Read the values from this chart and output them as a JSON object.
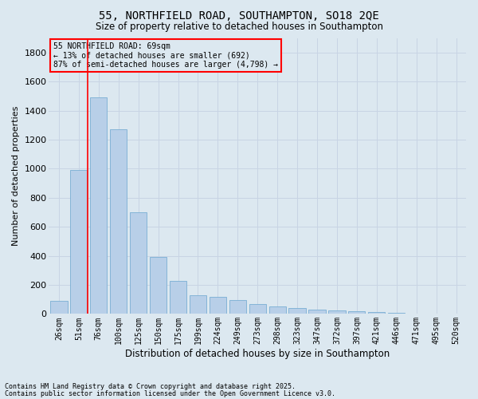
{
  "title1": "55, NORTHFIELD ROAD, SOUTHAMPTON, SO18 2QE",
  "title2": "Size of property relative to detached houses in Southampton",
  "xlabel": "Distribution of detached houses by size in Southampton",
  "ylabel": "Number of detached properties",
  "categories": [
    "26sqm",
    "51sqm",
    "76sqm",
    "100sqm",
    "125sqm",
    "150sqm",
    "175sqm",
    "199sqm",
    "224sqm",
    "249sqm",
    "273sqm",
    "298sqm",
    "323sqm",
    "347sqm",
    "372sqm",
    "397sqm",
    "421sqm",
    "446sqm",
    "471sqm",
    "495sqm",
    "520sqm"
  ],
  "values": [
    90,
    990,
    1490,
    1270,
    700,
    390,
    225,
    130,
    115,
    95,
    70,
    50,
    38,
    28,
    22,
    18,
    12,
    7,
    3,
    1,
    1
  ],
  "bar_color": "#b8cfe8",
  "bar_edge_color": "#7aaed4",
  "vline_color": "red",
  "vline_x": 1.45,
  "annotation_text": "55 NORTHFIELD ROAD: 69sqm\n← 13% of detached houses are smaller (692)\n87% of semi-detached houses are larger (4,798) →",
  "annotation_box_color": "red",
  "ylim": [
    0,
    1900
  ],
  "yticks": [
    0,
    200,
    400,
    600,
    800,
    1000,
    1200,
    1400,
    1600,
    1800
  ],
  "grid_color": "#c8d4e4",
  "bg_color": "#dce8f0",
  "footnote1": "Contains HM Land Registry data © Crown copyright and database right 2025.",
  "footnote2": "Contains public sector information licensed under the Open Government Licence v3.0."
}
